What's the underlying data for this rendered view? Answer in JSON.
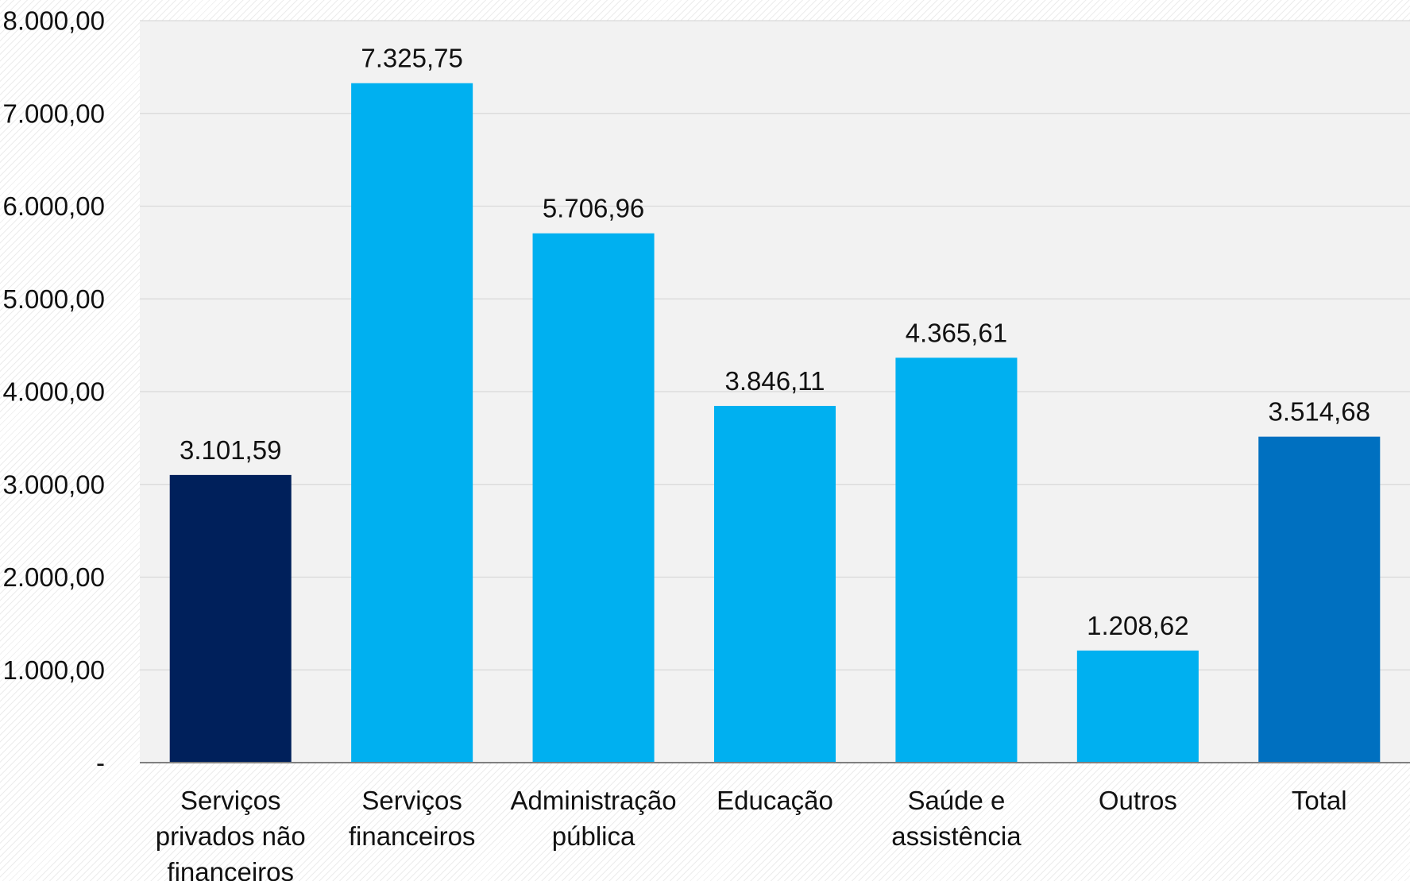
{
  "chart_data": {
    "type": "bar",
    "title": "",
    "xlabel": "",
    "ylabel": "",
    "ylim": [
      0,
      8000
    ],
    "grid": true,
    "legend": "none",
    "y_ticks": [
      {
        "value": 0,
        "label": "-"
      },
      {
        "value": 1000,
        "label": "1.000,00"
      },
      {
        "value": 2000,
        "label": "2.000,00"
      },
      {
        "value": 3000,
        "label": "3.000,00"
      },
      {
        "value": 4000,
        "label": "4.000,00"
      },
      {
        "value": 5000,
        "label": "5.000,00"
      },
      {
        "value": 6000,
        "label": "6.000,00"
      },
      {
        "value": 7000,
        "label": "7.000,00"
      },
      {
        "value": 8000,
        "label": "8.000,00"
      }
    ],
    "categories": [
      [
        "Serviços",
        "privados não",
        "financeiros"
      ],
      [
        "Serviços",
        "financeiros"
      ],
      [
        "Administração",
        "pública"
      ],
      [
        "Educação"
      ],
      [
        "Saúde e",
        "assistência"
      ],
      [
        "Outros"
      ],
      [
        "Total"
      ]
    ],
    "values": [
      3101.59,
      7325.75,
      5706.96,
      3846.11,
      4365.61,
      1208.62,
      3514.68
    ],
    "value_labels": [
      "3.101,59",
      "7.325,75",
      "5.706,96",
      "3.846,11",
      "4.365,61",
      "1.208,62",
      "3.514,68"
    ],
    "bar_colors": [
      "#00205b",
      "#00b0f0",
      "#00b0f0",
      "#00b0f0",
      "#00b0f0",
      "#00b0f0",
      "#0070c0"
    ],
    "colors": {
      "plot_background": "#f2f2f2",
      "gridline": "#d9d9d9",
      "axis_line": "#7f7f7f",
      "text": "#111111"
    }
  }
}
